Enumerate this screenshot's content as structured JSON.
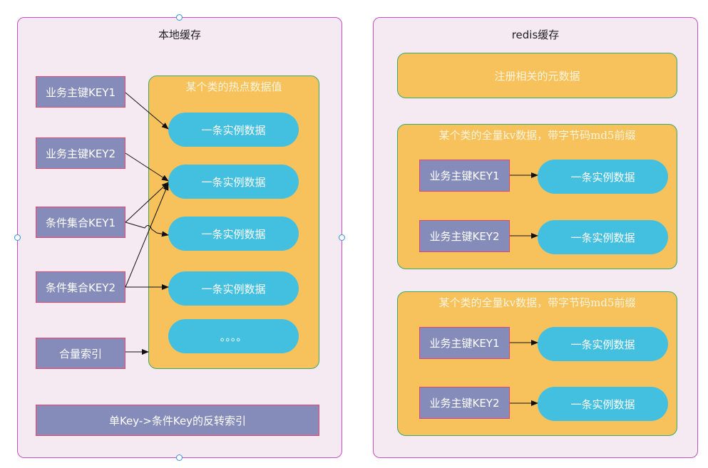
{
  "local": {
    "title": "本地缓存",
    "group_title": "某个类的热点数据值",
    "keys": [
      "业务主键KEY1",
      "业务主键KEY2",
      "条件集合KEY1",
      "条件集合KEY2",
      "合量索引"
    ],
    "pills": [
      "一条实例数据",
      "一条实例数据",
      "一条实例数据",
      "一条实例数据",
      "。。。。"
    ],
    "reverse_index": "单Key->条件Key的反转索引"
  },
  "redis": {
    "title": "redis缓存",
    "meta_box": "注册相关的元数据",
    "groups": [
      {
        "title": "某个类的全量kv数据，带字节码md5前缀",
        "keys": [
          "业务主键KEY1",
          "业务主键KEY2"
        ],
        "pills": [
          "一条实例数据",
          "一条实例数据"
        ]
      },
      {
        "title": "某个类的全量kv数据，带字节码md5前缀",
        "keys": [
          "业务主键KEY1",
          "业务主键KEY2"
        ],
        "pills": [
          "一条实例数据",
          "一条实例数据"
        ]
      }
    ]
  }
}
